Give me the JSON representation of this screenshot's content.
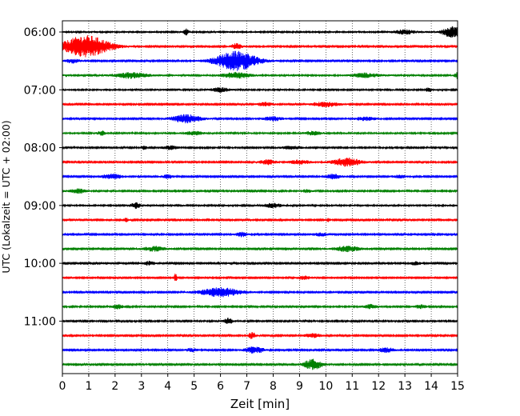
{
  "chart_data": {
    "type": "line",
    "title": "",
    "xlabel": "Zeit  [min]",
    "ylabel": "UTC (Lokalzeit = UTC + 02:00)",
    "xlim": [
      0,
      15
    ],
    "x_ticks": [
      0,
      1,
      2,
      3,
      4,
      5,
      6,
      7,
      8,
      9,
      10,
      11,
      12,
      13,
      14,
      15
    ],
    "y_tick_labels": [
      "06:00",
      "07:00",
      "08:00",
      "09:00",
      "10:00",
      "11:00"
    ],
    "y_tick_rows": [
      0,
      4,
      8,
      12,
      16,
      20
    ],
    "row_minutes": 15,
    "grid": "vertical-dotted",
    "trace_colors": [
      "#000000",
      "#ff0000",
      "#0000ff",
      "#008000"
    ],
    "rows": [
      {
        "start": "06:00",
        "color": "#000000",
        "noise": 0.25,
        "events": [
          {
            "t": 4.7,
            "a": 0.8,
            "w": 0.1
          },
          {
            "t": 13.0,
            "a": 0.6,
            "w": 0.4
          },
          {
            "t": 14.8,
            "a": 1.6,
            "w": 0.35
          }
        ]
      },
      {
        "start": "06:15",
        "color": "#ff0000",
        "noise": 0.2,
        "events": [
          {
            "t": 0.9,
            "a": 3.2,
            "w": 0.9
          },
          {
            "t": 6.6,
            "a": 0.9,
            "w": 0.2
          }
        ]
      },
      {
        "start": "06:30",
        "color": "#0000ff",
        "noise": 0.2,
        "events": [
          {
            "t": 0.4,
            "a": 0.6,
            "w": 0.3
          },
          {
            "t": 6.6,
            "a": 2.8,
            "w": 0.8
          }
        ]
      },
      {
        "start": "06:45",
        "color": "#008000",
        "noise": 0.25,
        "events": [
          {
            "t": 2.6,
            "a": 0.8,
            "w": 0.6
          },
          {
            "t": 6.6,
            "a": 0.8,
            "w": 0.5
          },
          {
            "t": 11.5,
            "a": 0.6,
            "w": 0.5
          },
          {
            "t": 15.0,
            "a": 0.9,
            "w": 0.1
          }
        ]
      },
      {
        "start": "07:00",
        "color": "#000000",
        "noise": 0.25,
        "events": [
          {
            "t": 6.0,
            "a": 0.6,
            "w": 0.3
          },
          {
            "t": 13.9,
            "a": 0.7,
            "w": 0.1
          }
        ]
      },
      {
        "start": "07:15",
        "color": "#ff0000",
        "noise": 0.2,
        "events": [
          {
            "t": 7.7,
            "a": 0.5,
            "w": 0.3
          },
          {
            "t": 10.0,
            "a": 0.7,
            "w": 0.5
          }
        ]
      },
      {
        "start": "07:30",
        "color": "#0000ff",
        "noise": 0.2,
        "events": [
          {
            "t": 4.7,
            "a": 1.2,
            "w": 0.55
          },
          {
            "t": 8.0,
            "a": 0.6,
            "w": 0.4
          },
          {
            "t": 11.5,
            "a": 0.5,
            "w": 0.4
          }
        ]
      },
      {
        "start": "07:45",
        "color": "#008000",
        "noise": 0.25,
        "events": [
          {
            "t": 1.5,
            "a": 0.6,
            "w": 0.15
          },
          {
            "t": 5.0,
            "a": 0.5,
            "w": 0.3
          },
          {
            "t": 9.5,
            "a": 0.5,
            "w": 0.3
          }
        ]
      },
      {
        "start": "08:00",
        "color": "#000000",
        "noise": 0.22,
        "events": [
          {
            "t": 3.1,
            "a": 0.6,
            "w": 0.1
          },
          {
            "t": 4.1,
            "a": 0.5,
            "w": 0.3
          },
          {
            "t": 8.7,
            "a": 0.4,
            "w": 0.4
          }
        ]
      },
      {
        "start": "08:15",
        "color": "#ff0000",
        "noise": 0.2,
        "events": [
          {
            "t": 7.8,
            "a": 0.7,
            "w": 0.3
          },
          {
            "t": 9.0,
            "a": 0.6,
            "w": 0.4
          },
          {
            "t": 10.8,
            "a": 1.2,
            "w": 0.55
          }
        ]
      },
      {
        "start": "08:30",
        "color": "#0000ff",
        "noise": 0.2,
        "events": [
          {
            "t": 1.9,
            "a": 0.7,
            "w": 0.4
          },
          {
            "t": 4.0,
            "a": 0.5,
            "w": 0.2
          },
          {
            "t": 10.3,
            "a": 0.7,
            "w": 0.3
          },
          {
            "t": 12.8,
            "a": 0.4,
            "w": 0.3
          }
        ]
      },
      {
        "start": "08:45",
        "color": "#008000",
        "noise": 0.22,
        "events": [
          {
            "t": 0.6,
            "a": 0.6,
            "w": 0.3
          },
          {
            "t": 9.3,
            "a": 0.4,
            "w": 0.2
          }
        ]
      },
      {
        "start": "09:00",
        "color": "#000000",
        "noise": 0.25,
        "events": [
          {
            "t": 2.8,
            "a": 0.8,
            "w": 0.2
          },
          {
            "t": 8.0,
            "a": 0.6,
            "w": 0.3
          }
        ]
      },
      {
        "start": "09:15",
        "color": "#ff0000",
        "noise": 0.2,
        "events": [
          {
            "t": 2.4,
            "a": 0.6,
            "w": 0.1
          },
          {
            "t": 10.1,
            "a": 0.5,
            "w": 0.1
          }
        ]
      },
      {
        "start": "09:30",
        "color": "#0000ff",
        "noise": 0.2,
        "events": [
          {
            "t": 6.8,
            "a": 0.7,
            "w": 0.2
          },
          {
            "t": 9.8,
            "a": 0.5,
            "w": 0.3
          }
        ]
      },
      {
        "start": "09:45",
        "color": "#008000",
        "noise": 0.2,
        "events": [
          {
            "t": 3.5,
            "a": 0.7,
            "w": 0.4
          },
          {
            "t": 10.8,
            "a": 0.8,
            "w": 0.5
          }
        ]
      },
      {
        "start": "10:00",
        "color": "#000000",
        "noise": 0.2,
        "events": [
          {
            "t": 3.3,
            "a": 0.6,
            "w": 0.2
          },
          {
            "t": 13.4,
            "a": 0.5,
            "w": 0.2
          }
        ]
      },
      {
        "start": "10:15",
        "color": "#ff0000",
        "noise": 0.18,
        "events": [
          {
            "t": 4.3,
            "a": 1.6,
            "w": 0.05
          },
          {
            "t": 9.2,
            "a": 0.5,
            "w": 0.3
          }
        ]
      },
      {
        "start": "10:30",
        "color": "#0000ff",
        "noise": 0.2,
        "events": [
          {
            "t": 6.0,
            "a": 1.3,
            "w": 0.8
          }
        ]
      },
      {
        "start": "10:45",
        "color": "#008000",
        "noise": 0.22,
        "events": [
          {
            "t": 2.1,
            "a": 0.6,
            "w": 0.2
          },
          {
            "t": 11.7,
            "a": 0.6,
            "w": 0.3
          },
          {
            "t": 13.6,
            "a": 0.5,
            "w": 0.2
          }
        ]
      },
      {
        "start": "11:00",
        "color": "#000000",
        "noise": 0.22,
        "events": [
          {
            "t": 6.3,
            "a": 0.9,
            "w": 0.15
          }
        ]
      },
      {
        "start": "11:15",
        "color": "#ff0000",
        "noise": 0.2,
        "events": [
          {
            "t": 7.2,
            "a": 0.9,
            "w": 0.15
          },
          {
            "t": 9.5,
            "a": 0.6,
            "w": 0.3
          }
        ]
      },
      {
        "start": "11:30",
        "color": "#0000ff",
        "noise": 0.2,
        "events": [
          {
            "t": 4.9,
            "a": 0.5,
            "w": 0.2
          },
          {
            "t": 7.3,
            "a": 1.0,
            "w": 0.35
          },
          {
            "t": 12.3,
            "a": 0.7,
            "w": 0.3
          }
        ]
      },
      {
        "start": "11:45",
        "color": "#008000",
        "noise": 0.2,
        "events": [
          {
            "t": 9.5,
            "a": 1.5,
            "w": 0.35
          }
        ]
      }
    ]
  }
}
